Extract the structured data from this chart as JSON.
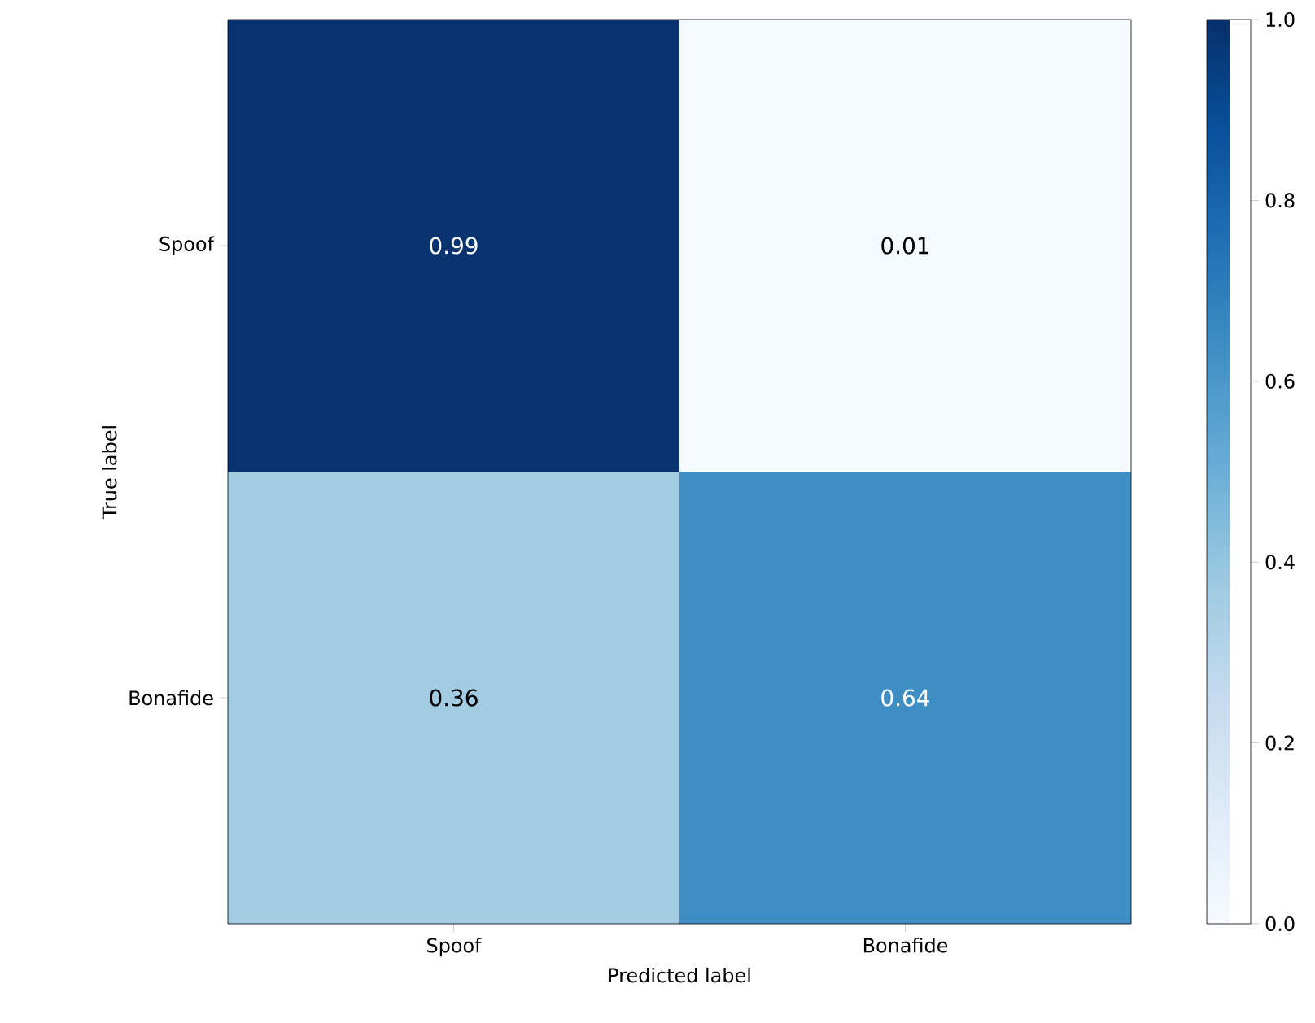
{
  "chart_data": {
    "type": "heatmap",
    "xlabel": "Predicted label",
    "ylabel": "True label",
    "categories": [
      "Spoof",
      "Bonafide"
    ],
    "y_categories": [
      "Spoof",
      "Bonafide"
    ],
    "cells": [
      [
        0.99,
        0.01
      ],
      [
        0.36,
        0.64
      ]
    ],
    "clim": [
      0,
      1
    ],
    "cticks": [
      {
        "value": 0,
        "label": "0.0"
      },
      {
        "value": 0.2,
        "label": "0.2"
      },
      {
        "value": 0.4,
        "label": "0.4"
      },
      {
        "value": 0.6,
        "label": "0.6"
      },
      {
        "value": 0.8,
        "label": "0.8"
      },
      {
        "value": 1,
        "label": "1.0"
      }
    ],
    "data_labels": true
  }
}
